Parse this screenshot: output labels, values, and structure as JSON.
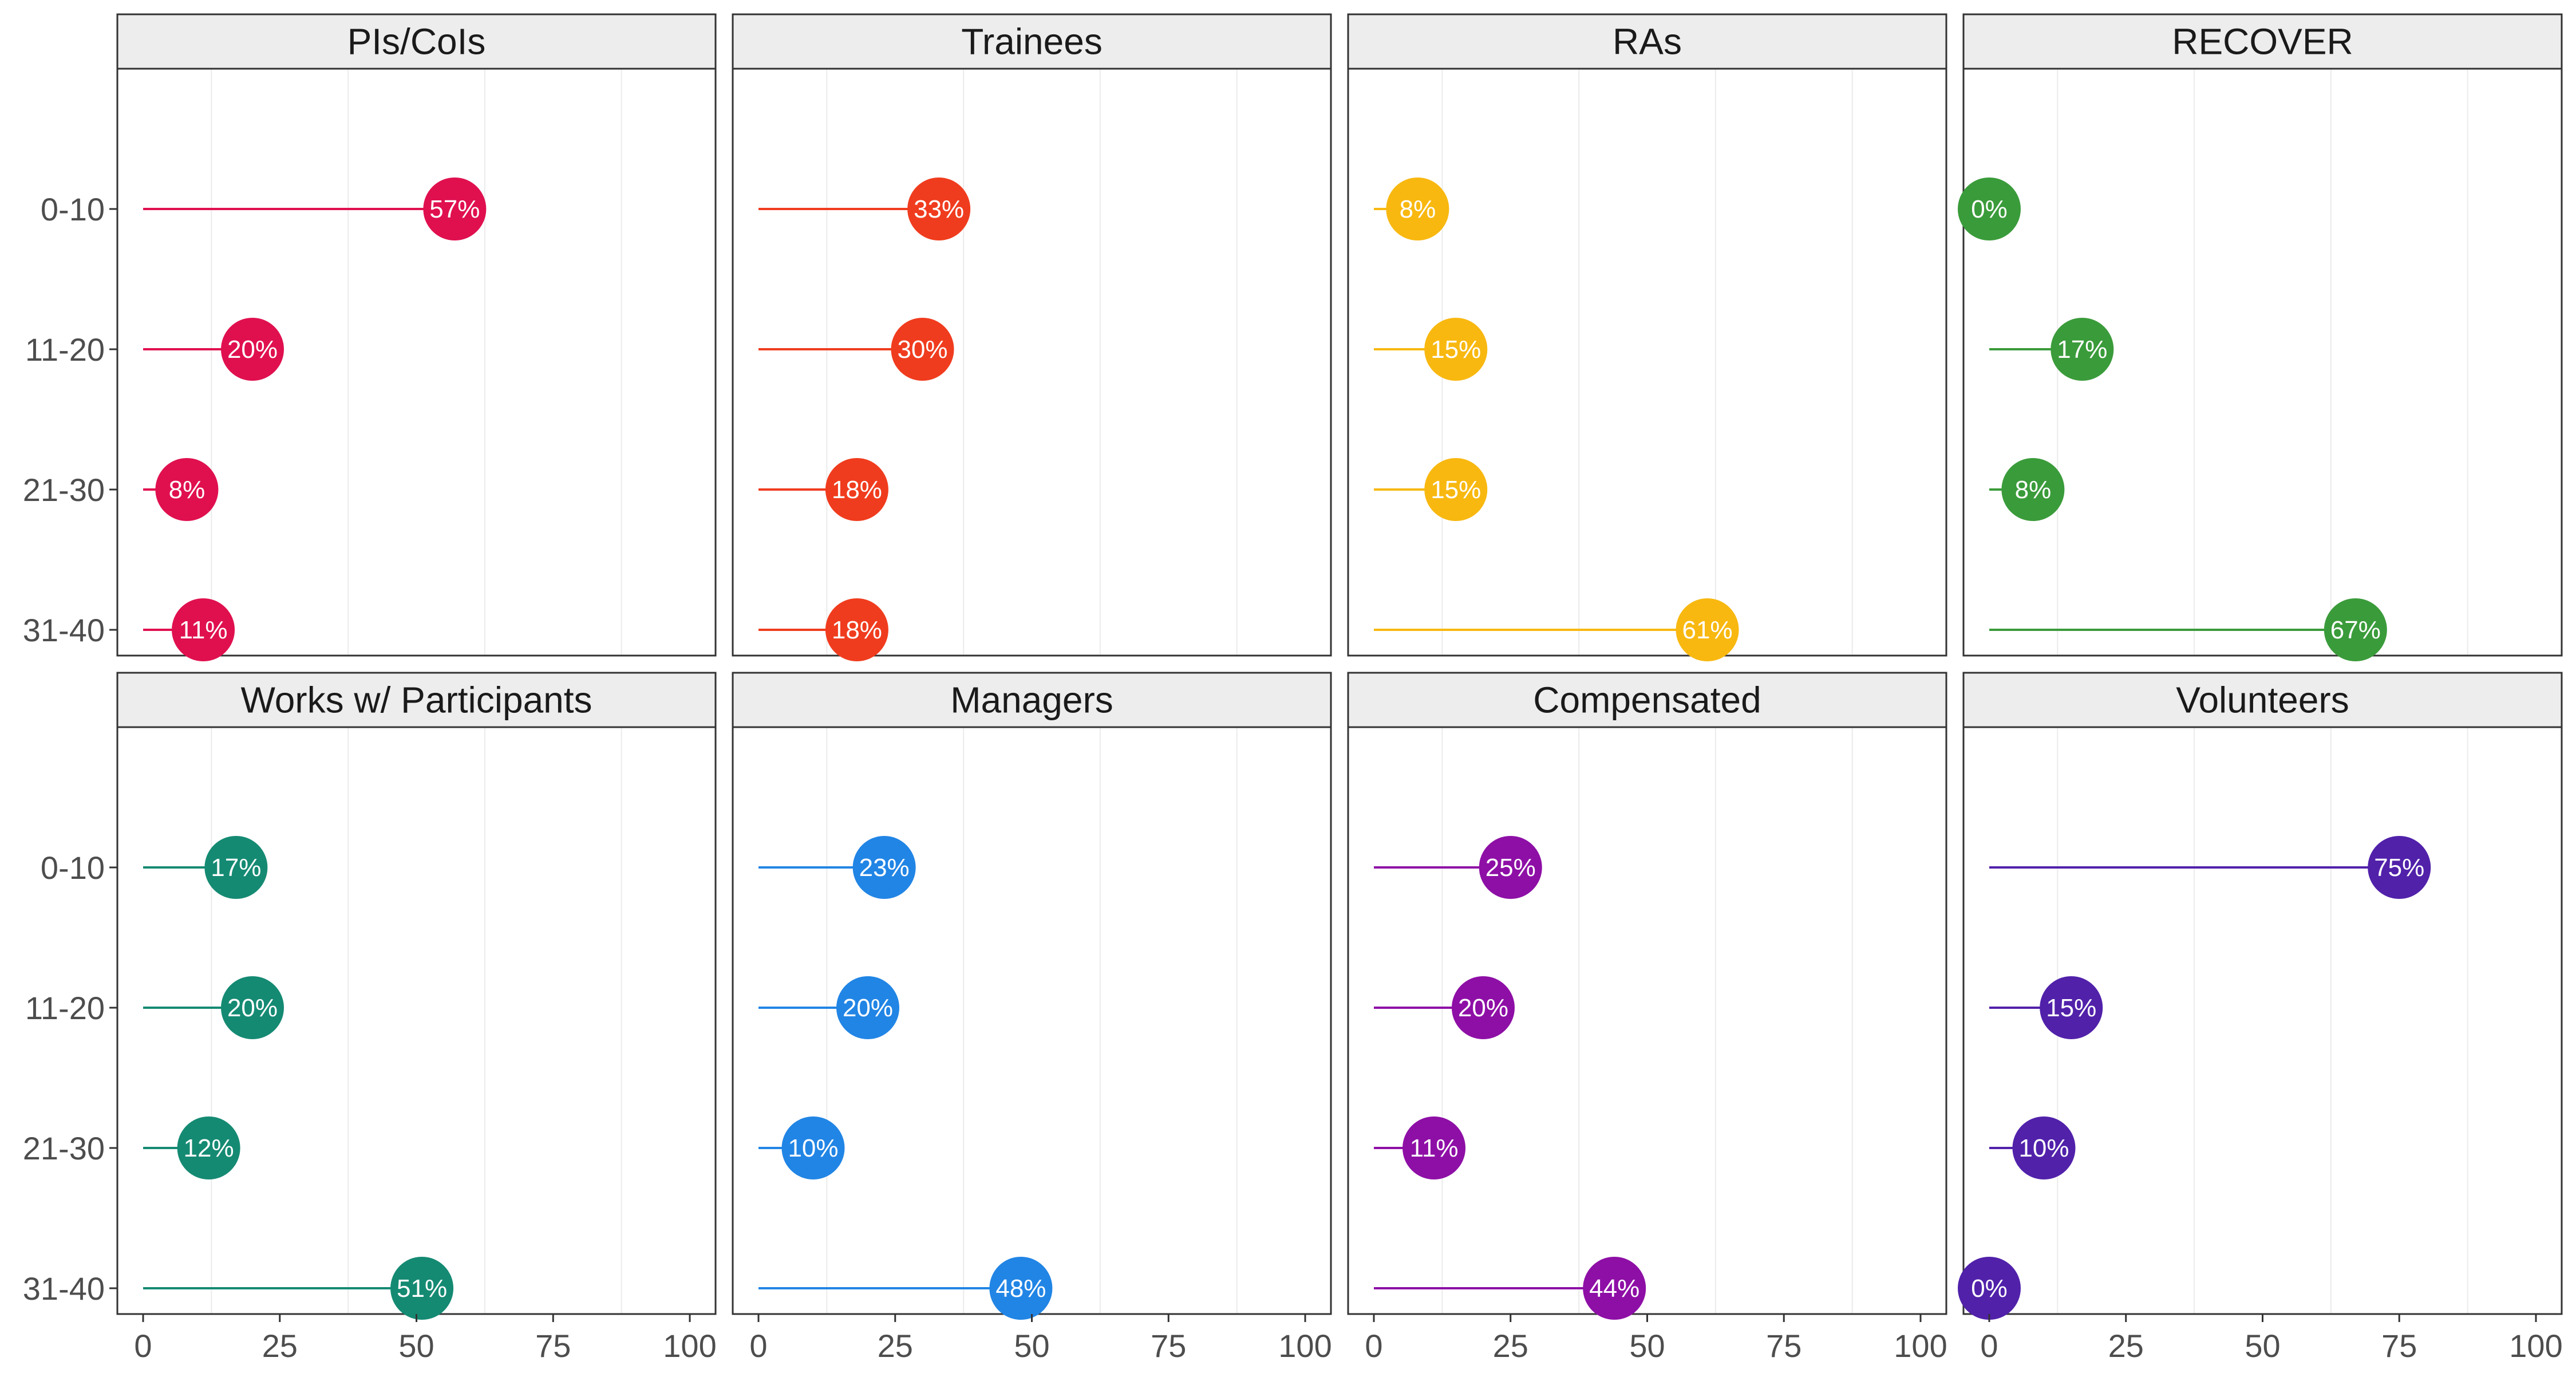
{
  "chart_data": {
    "type": "lollipop",
    "facet_layout": "2 rows x 4 columns",
    "categories": [
      "0-10",
      "11-20",
      "21-30",
      "31-40"
    ],
    "xlim": [
      0,
      100
    ],
    "x_ticks": [
      "0",
      "25",
      "50",
      "75",
      "100"
    ],
    "grid": "minor vertical gridlines only",
    "value_label_suffix": "%",
    "panels": [
      {
        "title": "PIs/CoIs",
        "color": "#E0104F",
        "values": [
          57,
          20,
          8,
          11
        ],
        "labels": [
          "57%",
          "20%",
          "8%",
          "11%"
        ]
      },
      {
        "title": "Trainees",
        "color": "#F03C1E",
        "values": [
          33,
          30,
          18,
          18
        ],
        "labels": [
          "33%",
          "30%",
          "18%",
          "18%"
        ]
      },
      {
        "title": "RAs",
        "color": "#F8B810",
        "values": [
          8,
          15,
          15,
          61
        ],
        "labels": [
          "8%",
          "15%",
          "15%",
          "61%"
        ]
      },
      {
        "title": "RECOVER",
        "color": "#3A9B3A",
        "values": [
          0,
          17,
          8,
          67
        ],
        "labels": [
          "0%",
          "17%",
          "8%",
          "67%"
        ]
      },
      {
        "title": "Works w/ Participants",
        "color": "#158A73",
        "values": [
          17,
          20,
          12,
          51
        ],
        "labels": [
          "17%",
          "20%",
          "12%",
          "51%"
        ]
      },
      {
        "title": "Managers",
        "color": "#2185E5",
        "values": [
          23,
          20,
          10,
          48
        ],
        "labels": [
          "23%",
          "20%",
          "10%",
          "48%"
        ]
      },
      {
        "title": "Compensated",
        "color": "#8E0FA6",
        "values": [
          25,
          20,
          11,
          44
        ],
        "labels": [
          "25%",
          "20%",
          "11%",
          "44%"
        ]
      },
      {
        "title": "Volunteers",
        "color": "#5121AA",
        "values": [
          75,
          15,
          10,
          0
        ],
        "labels": [
          "75%",
          "15%",
          "10%",
          "0%"
        ]
      }
    ]
  }
}
